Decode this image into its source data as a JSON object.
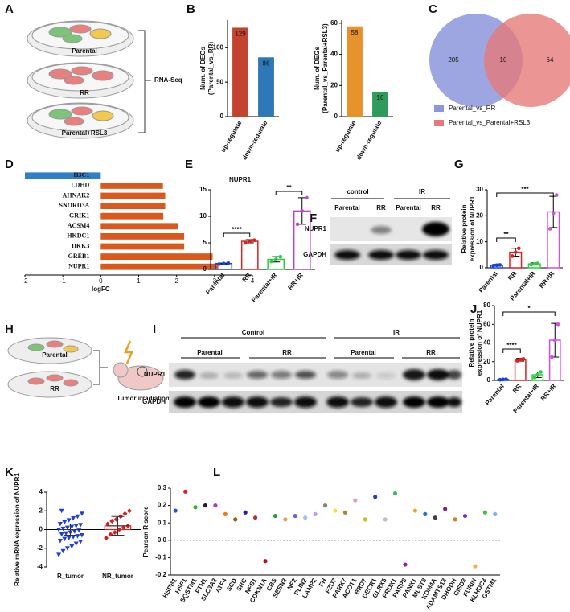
{
  "panels": [
    "A",
    "B",
    "C",
    "D",
    "E",
    "F",
    "G",
    "H",
    "I",
    "J",
    "K",
    "L"
  ],
  "diagram_a": {
    "groups": [
      "Parental",
      "RR",
      "Parental+RSL3"
    ],
    "method": "RNA-Seq"
  },
  "blot_f": {
    "conditions": [
      "control",
      "IR"
    ],
    "groups": [
      "Parental",
      "RR",
      "Parental",
      "RR"
    ],
    "proteins": [
      "NUPR1",
      "GAPDH"
    ]
  },
  "diagram_h": {
    "groups": [
      "Parental",
      "RR"
    ],
    "treatment": "Tumor irradiation"
  },
  "blot_i": {
    "conditions": [
      "Control",
      "IR"
    ],
    "groups": [
      "Parental",
      "RR",
      "Parental",
      "RR"
    ],
    "proteins": [
      "NUPR1",
      "GAPDH"
    ]
  },
  "chart_data": [
    {
      "type": "bar",
      "ylabel": [
        "Num. of DEGs",
        "(Parental_vs_RR)"
      ],
      "categories": [
        "up-regulate",
        "down-regulate"
      ],
      "values": [
        129,
        86
      ],
      "colors": [
        "#c4432e",
        "#2e78b7"
      ],
      "data_labels": true,
      "ylim": [
        0,
        140
      ],
      "yticks": [
        0,
        50,
        100
      ]
    },
    {
      "type": "bar",
      "ylabel": [
        "Num. of DEGs",
        "(Parental_vs_Parental+RSL3)"
      ],
      "categories": [
        "up-regulate",
        "down-regulate"
      ],
      "values": [
        58,
        16
      ],
      "colors": [
        "#e8922b",
        "#2e9a5c"
      ],
      "data_labels": true,
      "ylim": [
        0,
        62
      ],
      "yticks": [
        0,
        20,
        40,
        60
      ]
    },
    {
      "type": "venn",
      "values": [
        205,
        10,
        64
      ],
      "series": [
        {
          "name": "Parental_vs_RR",
          "color": "#8c96dc"
        },
        {
          "name": "Parental_vs_Parental+RSL3",
          "color": "#e67a7a"
        }
      ]
    },
    {
      "type": "hbar",
      "categories": [
        "H3C1",
        "LDHD",
        "AHNAK2",
        "SNORD3A",
        "GRIK1",
        "ACSM4",
        "HKDC1",
        "DKK3",
        "GREB1",
        "NUPR1"
      ],
      "values": [
        -2,
        1.64,
        1.7,
        1.7,
        1.65,
        2.05,
        2.2,
        2.2,
        2.95,
        3.1
      ],
      "colors": [
        "#2f7fc9",
        "#d9581e",
        "#d9581e",
        "#d9581e",
        "#d9581e",
        "#d9581e",
        "#d9581e",
        "#d9581e",
        "#d9581e",
        "#d9581e"
      ],
      "xlim": [
        -2,
        4
      ],
      "xticks": [
        -2,
        -1,
        0,
        1,
        2,
        3,
        4
      ],
      "xlabel": "logFC"
    },
    {
      "type": "bar",
      "style": "outline",
      "title": "NUPR1",
      "categories": [
        "Parental",
        "RR",
        "Parental+IR",
        "RR+IR"
      ],
      "values": [
        1.1,
        5.3,
        1.9,
        11
      ],
      "errors": [
        0.1,
        0.3,
        0.5,
        2.5
      ],
      "points": [
        [
          1.0,
          1.1,
          1.2
        ],
        [
          5.0,
          5.3,
          5.5
        ],
        [
          1.5,
          1.9,
          2.4
        ],
        [
          8.5,
          11,
          13.5
        ]
      ],
      "colors": [
        "#1a3fe0",
        "#e02020",
        "#2ecc40",
        "#c040d0"
      ],
      "ylim": [
        0,
        15
      ],
      "yticks": [
        0,
        5,
        10,
        15
      ],
      "annotations": [
        "****",
        "**"
      ]
    },
    {
      "type": "bar",
      "style": "outline",
      "ylabel": [
        "Relative protein",
        "expression of NUPR1"
      ],
      "categories": [
        "Parental",
        "RR",
        "Parental+IR",
        "RR+IR"
      ],
      "values": [
        1,
        6,
        1.5,
        21.5
      ],
      "errors": [
        0.3,
        1.5,
        0.4,
        6
      ],
      "points": [
        [
          0.8,
          1,
          1.1
        ],
        [
          4.5,
          6,
          7.5
        ],
        [
          1.2,
          1.5,
          1.7
        ],
        [
          15,
          21,
          28
        ]
      ],
      "colors": [
        "#1a3fe0",
        "#e02020",
        "#2ecc40",
        "#d050e0"
      ],
      "ylim": [
        0,
        30
      ],
      "yticks": [
        0,
        10,
        20,
        30
      ],
      "annotations": [
        "**",
        "***"
      ]
    },
    {
      "type": "bar",
      "style": "outline",
      "ylabel": [
        "Relative protein",
        "expression of NUPR1"
      ],
      "categories": [
        "Parental",
        "RR",
        "Parental+IR",
        "RR+IR"
      ],
      "values": [
        1,
        22,
        6,
        43
      ],
      "errors": [
        0.5,
        1.5,
        3,
        18
      ],
      "points": [
        [
          0.7,
          1,
          1.3
        ],
        [
          21,
          22,
          23
        ],
        [
          3,
          6,
          9
        ],
        [
          25,
          43,
          60
        ]
      ],
      "colors": [
        "#1a3fe0",
        "#e02020",
        "#2ecc40",
        "#d050e0"
      ],
      "ylim": [
        0,
        80
      ],
      "yticks": [
        0,
        20,
        40,
        60,
        80
      ],
      "annotations": [
        "****",
        "*"
      ]
    },
    {
      "type": "dot",
      "ylabel": [
        "Relative mRNA expression of NUPR1"
      ],
      "categories": [
        "R_tumor",
        "NR_tumor"
      ],
      "values": [
        0,
        0.4
      ],
      "errors": [
        0.6,
        1.0
      ],
      "points": [
        [
          -2.7,
          -2.3,
          -2.0,
          -1.8,
          -1.5,
          -1.3,
          -1.2,
          -1.0,
          -0.9,
          -0.8,
          -0.7,
          -0.6,
          -0.5,
          -0.4,
          -0.3,
          -0.2,
          -0.1,
          0,
          0.1,
          0.2,
          0.3,
          0.4,
          0.5,
          0.6,
          0.8,
          1.0,
          1.2,
          1.4,
          1.7,
          2.0
        ],
        [
          -0.9,
          -0.5,
          -0.3,
          0,
          0.2,
          0.4,
          0.6,
          0.9,
          1.1,
          1.4,
          1.7,
          2.0
        ]
      ],
      "colors": [
        "#1f3fd6",
        "#d62020"
      ],
      "ylim": [
        -4,
        4
      ],
      "yticks": [
        -4,
        -2,
        0,
        2,
        4
      ]
    },
    {
      "type": "scatter",
      "ylabel": [
        "Pearson R score"
      ],
      "categories": [
        "HSPB1",
        "HSF1",
        "SQSTM1",
        "FTH1",
        "SLC3A2",
        "ATF4",
        "SCD",
        "SRC",
        "NFS1",
        "CDKN1A",
        "CBS",
        "SESN2",
        "NF2",
        "PLIN2",
        "LAMP2",
        "FH",
        "FZD7",
        "PARK7",
        "ACOT1",
        "BRD7",
        "DECR1",
        "GLRX5",
        "PRDX1",
        "PARP8",
        "PANX1",
        "MLST8",
        "KDM4A",
        "ADAMTS13",
        "DHODH",
        "CISD3",
        "FURIN",
        "KLHDC3",
        "GSTM1"
      ],
      "values": [
        0.17,
        0.28,
        0.19,
        0.2,
        0.2,
        0.15,
        0.12,
        0.16,
        0.13,
        -0.12,
        0.14,
        0.12,
        0.14,
        0.13,
        0.15,
        0.2,
        0.17,
        0.16,
        0.23,
        0.12,
        0.25,
        0.12,
        0.27,
        -0.14,
        0.17,
        0.15,
        0.13,
        0.18,
        0.12,
        0.14,
        -0.15,
        0.16,
        0.15
      ],
      "colors": [
        "#3050e0",
        "#e02020",
        "#30b030",
        "#202020",
        "#a040c0",
        "#e08020",
        "#807000",
        "#2020a0",
        "#c03030",
        "#b01010",
        "#20a040",
        "#e0a060",
        "#6060e0",
        "#a0c0f0",
        "#c0a0e0",
        "#808080",
        "#f0e040",
        "#b08040",
        "#e0a0c0",
        "#c0c020",
        "#2040c0",
        "#c0c0c0",
        "#30c060",
        "#9020a0",
        "#f0a030",
        "#3070d0",
        "#404040",
        "#802080",
        "#d08030",
        "#8030c0",
        "#f0b050",
        "#40c040",
        "#80b0f0"
      ],
      "ylim": [
        -0.2,
        0.3
      ],
      "yticks": [
        -0.2,
        -0.1,
        {
          "value": 0,
          "label": "0.0"
        },
        0.1,
        0.2,
        0.3
      ]
    }
  ]
}
